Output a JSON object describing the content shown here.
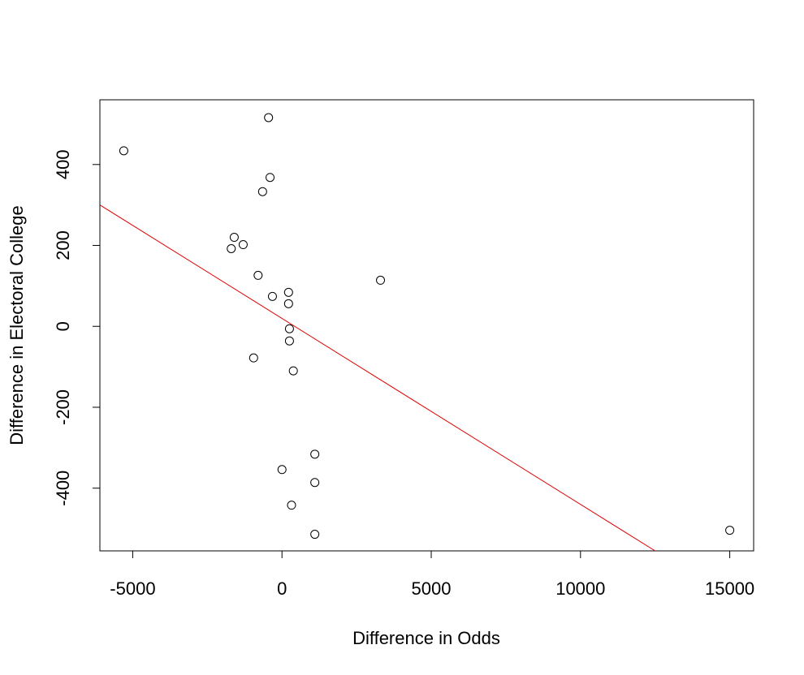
{
  "chart_data": {
    "type": "scatter",
    "xlabel": "Difference in Odds",
    "ylabel": "Difference in Electoral College",
    "xlim": [
      -6100,
      15800
    ],
    "ylim": [
      -555,
      560
    ],
    "x_ticks": [
      -5000,
      0,
      5000,
      10000,
      15000
    ],
    "y_ticks": [
      -400,
      -200,
      0,
      200,
      400
    ],
    "grid": false,
    "points": [
      {
        "x": -5300,
        "y": 434
      },
      {
        "x": -450,
        "y": 516
      },
      {
        "x": -400,
        "y": 368
      },
      {
        "x": -650,
        "y": 333
      },
      {
        "x": -1600,
        "y": 220
      },
      {
        "x": -1300,
        "y": 202
      },
      {
        "x": -1700,
        "y": 192
      },
      {
        "x": -800,
        "y": 126
      },
      {
        "x": -320,
        "y": 74
      },
      {
        "x": 220,
        "y": 84
      },
      {
        "x": 220,
        "y": 56
      },
      {
        "x": 3300,
        "y": 114
      },
      {
        "x": 250,
        "y": -6
      },
      {
        "x": 250,
        "y": -36
      },
      {
        "x": -950,
        "y": -78
      },
      {
        "x": 380,
        "y": -110
      },
      {
        "x": 1100,
        "y": -316
      },
      {
        "x": 0,
        "y": -354
      },
      {
        "x": 1100,
        "y": -386
      },
      {
        "x": 320,
        "y": -442
      },
      {
        "x": 1100,
        "y": -514
      },
      {
        "x": 15000,
        "y": -504
      }
    ],
    "regression_line": {
      "color": "#e00000",
      "from": {
        "x": -6100,
        "y": 300
      },
      "to": {
        "x": 12500,
        "y": -555
      }
    },
    "point_style": "open-circle",
    "point_color": "#000000"
  }
}
